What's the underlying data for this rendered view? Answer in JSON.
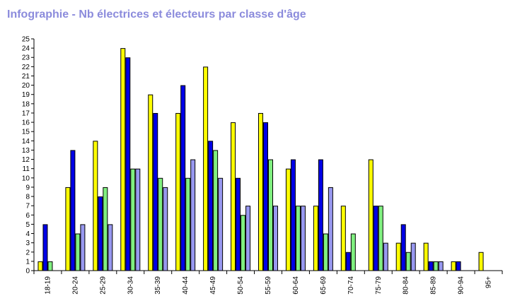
{
  "title": "Infographie - Nb électrices et électeurs par classe d'âge",
  "chart_data": {
    "type": "bar",
    "title": "Infographie - Nb électrices et électeurs par classe d'âge",
    "xlabel": "",
    "ylabel": "",
    "ylim": [
      0,
      25
    ],
    "yticks": [
      0,
      1,
      2,
      3,
      4,
      5,
      6,
      7,
      8,
      9,
      10,
      11,
      12,
      13,
      14,
      15,
      16,
      17,
      18,
      19,
      20,
      21,
      22,
      23,
      24,
      25
    ],
    "grid": false,
    "legend": "none",
    "categories": [
      "18-19",
      "20-24",
      "25-29",
      "30-34",
      "35-39",
      "40-44",
      "45-49",
      "50-54",
      "55-59",
      "60-64",
      "65-69",
      "70-74",
      "75-79",
      "80-84",
      "85-89",
      "90-94",
      "95+"
    ],
    "series": [
      {
        "color": "#ffff00",
        "values": [
          1,
          9,
          14,
          24,
          19,
          17,
          22,
          16,
          17,
          11,
          7,
          7,
          12,
          3,
          3,
          1,
          2
        ]
      },
      {
        "color": "#0000e6",
        "values": [
          5,
          13,
          8,
          23,
          17,
          20,
          14,
          10,
          16,
          12,
          12,
          2,
          7,
          5,
          1,
          1,
          0
        ]
      },
      {
        "color": "#80f080",
        "values": [
          1,
          4,
          9,
          11,
          10,
          10,
          13,
          6,
          12,
          7,
          4,
          4,
          7,
          2,
          1,
          0,
          0
        ]
      },
      {
        "color": "#9898f0",
        "values": [
          0,
          5,
          5,
          11,
          9,
          12,
          10,
          7,
          7,
          7,
          9,
          0,
          3,
          3,
          1,
          0,
          0
        ]
      }
    ]
  }
}
